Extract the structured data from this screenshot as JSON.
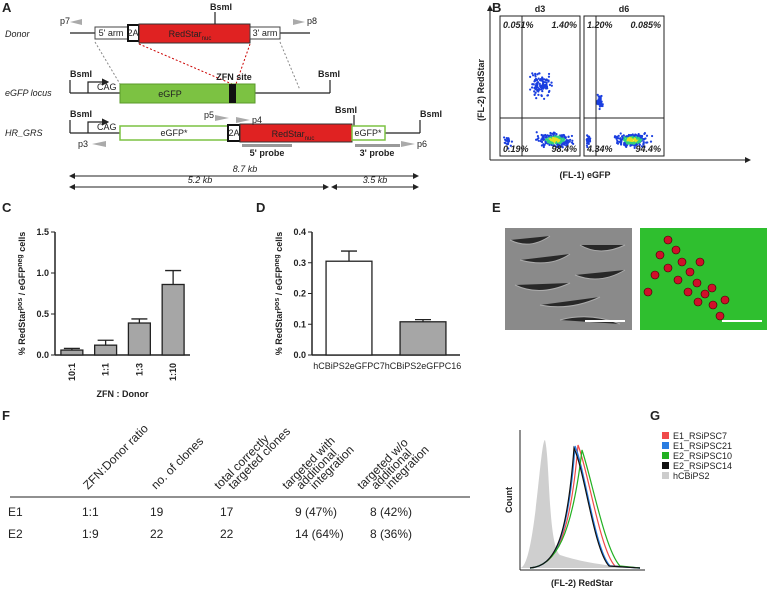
{
  "panel_labels": [
    "A",
    "B",
    "C",
    "D",
    "E",
    "F",
    "G"
  ],
  "diagram": {
    "donor": "Donor",
    "egfp_locus": "eGFP locus",
    "hr_grs": "HR_GRS",
    "bsmi": "BsmI",
    "arm5": "5' arm",
    "arm3": "3' arm",
    "t2a": "2A",
    "redstar": "RedStar",
    "nuc": "nuc",
    "cag": "CAG",
    "egfp": "eGFP",
    "egfp_star": "eGFP*",
    "zfn_site": "ZFN site",
    "p3": "p3",
    "p4": "p4",
    "p5": "p5",
    "p6": "p6",
    "p7": "p7",
    "p8": "p8",
    "probe5": "5' probe",
    "probe3": "3' probe",
    "kb_total": "8.7 kb",
    "kb_left": "5.2 kb",
    "kb_right": "3.5 kb"
  },
  "flow": {
    "ylabel": "(FL-2) RedStar",
    "xlabel": "(FL-1) eGFP",
    "plots": [
      {
        "title": "d3",
        "ul": "0.051%",
        "ur": "1.40%",
        "ll": "0.19%",
        "lr": "98.4%"
      },
      {
        "title": "d6",
        "ul": "1.20%",
        "ur": "0.085%",
        "ll": "4.34%",
        "lr": "94.4%"
      }
    ]
  },
  "chart_data": [
    {
      "type": "bar",
      "ylabel": [
        "% RedStar",
        "pos",
        " / eGFP",
        "neg",
        " cells"
      ],
      "xlabel": "ZFN : Donor",
      "categories": [
        "10:1",
        "1:1",
        "1:3",
        "1:10"
      ],
      "values": [
        0.06,
        0.12,
        0.39,
        0.86
      ],
      "errors": [
        0.02,
        0.06,
        0.05,
        0.17
      ],
      "colors": [
        "#a6a6a6",
        "#a6a6a6",
        "#a6a6a6",
        "#a6a6a6"
      ],
      "ylim": [
        0,
        1.5
      ],
      "yticks": [
        {
          "value": 0,
          "label": "0.0"
        },
        {
          "value": 0.5,
          "label": "0.5"
        },
        {
          "value": 1,
          "label": "1.0"
        },
        {
          "value": 1.5,
          "label": "1.5"
        }
      ]
    },
    {
      "type": "bar",
      "ylabel": [
        "% RedStar",
        "pos",
        " / eGFP",
        "neg",
        " cells"
      ],
      "categories": [
        "hCBiPS2eGFPC7",
        "hCBiPS2eGFPC16"
      ],
      "values": [
        0.305,
        0.108
      ],
      "errors": [
        0.033,
        0.007
      ],
      "colors": [
        "#ffffff",
        "#a6a6a6"
      ],
      "ylim": [
        0,
        0.4
      ],
      "yticks": [
        {
          "value": 0,
          "label": "0.0"
        },
        {
          "value": 0.1,
          "label": "0.1"
        },
        {
          "value": 0.2,
          "label": "0.2"
        },
        {
          "value": 0.3,
          "label": "0.3"
        },
        {
          "value": 0.4,
          "label": "0.4"
        }
      ]
    }
  ],
  "table": {
    "header": [
      [
        "ZFN:Donor ratio"
      ],
      [
        "no. of clones"
      ],
      [
        "total correctly",
        "targeted clones"
      ],
      [
        "targeted with",
        "additional",
        "integration"
      ],
      [
        "targeted w/o",
        "additional",
        "integration"
      ]
    ],
    "rows": [
      [
        "E1",
        "1:1",
        "19",
        "17",
        "9 (47%)",
        "8 (42%)"
      ],
      [
        "E2",
        "1:9",
        "22",
        "22",
        "14 (64%)",
        "8 (36%)"
      ]
    ]
  },
  "histogram": {
    "ylabel": "Count",
    "xlabel": "(FL-2) RedStar",
    "series": [
      {
        "name": "E1_RSiPSC7",
        "color": "#f04a4a"
      },
      {
        "name": "E1_RSiPSC21",
        "color": "#2a7de1"
      },
      {
        "name": "E2_RSiPSC10",
        "color": "#22b022"
      },
      {
        "name": "E2_RSiPSC14",
        "color": "#111111"
      },
      {
        "name": "hCBiPS2",
        "color": "#cccccc"
      }
    ]
  }
}
